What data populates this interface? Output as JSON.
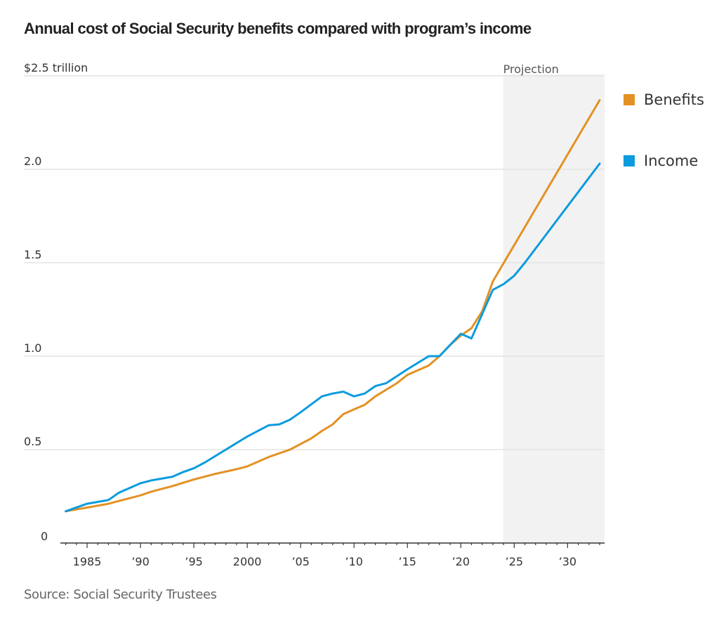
{
  "title": "Annual cost of Social Security benefits compared with program’s income",
  "source": "Source: Social Security Trustees",
  "chart_data": {
    "type": "line",
    "title": "Annual cost of Social Security benefits compared with program’s income",
    "xlabel": "",
    "ylabel": "$ trillion",
    "y_unit_label": "$2.5 trillion",
    "xlim": [
      1983,
      2033
    ],
    "ylim": [
      0,
      2.5
    ],
    "grid": true,
    "y_ticks": [
      {
        "value": 0,
        "label": "0"
      },
      {
        "value": 0.5,
        "label": "0.5"
      },
      {
        "value": 1.0,
        "label": "1.0"
      },
      {
        "value": 1.5,
        "label": "1.5"
      },
      {
        "value": 2.0,
        "label": "2.0"
      },
      {
        "value": 2.5,
        "label": "$2.5 trillion"
      }
    ],
    "x_ticks": [
      {
        "value": 1985,
        "label": "1985"
      },
      {
        "value": 1990,
        "label": "’90"
      },
      {
        "value": 1995,
        "label": "’95"
      },
      {
        "value": 2000,
        "label": "2000"
      },
      {
        "value": 2005,
        "label": "’05"
      },
      {
        "value": 2010,
        "label": "’10"
      },
      {
        "value": 2015,
        "label": "’15"
      },
      {
        "value": 2020,
        "label": "’20"
      },
      {
        "value": 2025,
        "label": "’25"
      },
      {
        "value": 2030,
        "label": "’30"
      }
    ],
    "projection": {
      "label": "Projection",
      "start": 2024,
      "end": 2033
    },
    "legend_position": "right",
    "series": [
      {
        "name": "Benefits",
        "color": "#E39124",
        "x": [
          1983,
          1985,
          1987,
          1988,
          1990,
          1991,
          1993,
          1995,
          1997,
          1999,
          2000,
          2002,
          2004,
          2006,
          2007,
          2008,
          2009,
          2010,
          2011,
          2012,
          2014,
          2015,
          2017,
          2018,
          2019,
          2020,
          2021,
          2022,
          2023,
          2033
        ],
        "values": [
          0.17,
          0.19,
          0.21,
          0.225,
          0.255,
          0.275,
          0.305,
          0.34,
          0.37,
          0.395,
          0.41,
          0.46,
          0.5,
          0.56,
          0.6,
          0.635,
          0.69,
          0.715,
          0.74,
          0.785,
          0.855,
          0.9,
          0.95,
          1.0,
          1.06,
          1.11,
          1.15,
          1.24,
          1.4,
          2.37
        ]
      },
      {
        "name": "Income",
        "color": "#0B9BDE",
        "x": [
          1983,
          1985,
          1987,
          1988,
          1990,
          1991,
          1993,
          1994,
          1995,
          1996,
          1998,
          2000,
          2001,
          2002,
          2003,
          2004,
          2005,
          2007,
          2008,
          2009,
          2010,
          2011,
          2012,
          2013,
          2015,
          2017,
          2018,
          2019,
          2020,
          2021,
          2023,
          2024,
          2025,
          2026,
          2033
        ],
        "values": [
          0.17,
          0.21,
          0.23,
          0.27,
          0.32,
          0.335,
          0.355,
          0.38,
          0.4,
          0.43,
          0.5,
          0.57,
          0.6,
          0.63,
          0.635,
          0.66,
          0.7,
          0.785,
          0.8,
          0.81,
          0.785,
          0.8,
          0.84,
          0.855,
          0.93,
          1.0,
          1.0,
          1.06,
          1.12,
          1.095,
          1.355,
          1.385,
          1.43,
          1.5,
          2.03
        ]
      }
    ]
  }
}
